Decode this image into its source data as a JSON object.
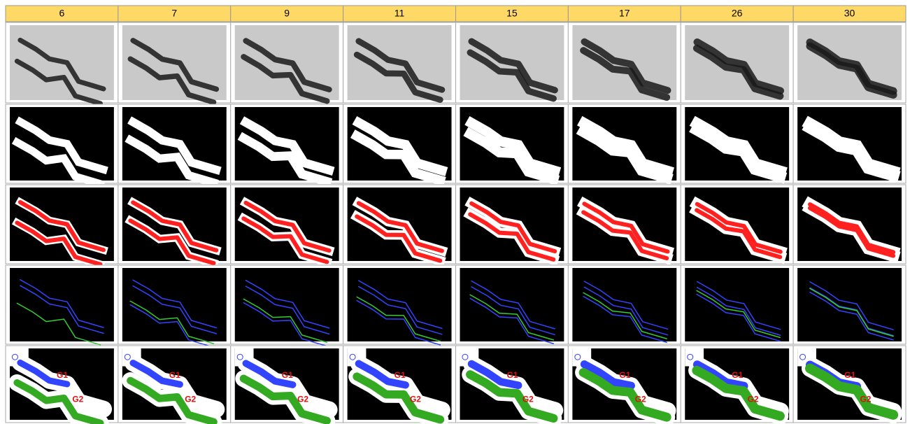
{
  "table": {
    "header": [
      "6",
      "7",
      "9",
      "11",
      "15",
      "17",
      "26",
      "30"
    ],
    "labels": [
      "G1",
      "G2"
    ]
  }
}
